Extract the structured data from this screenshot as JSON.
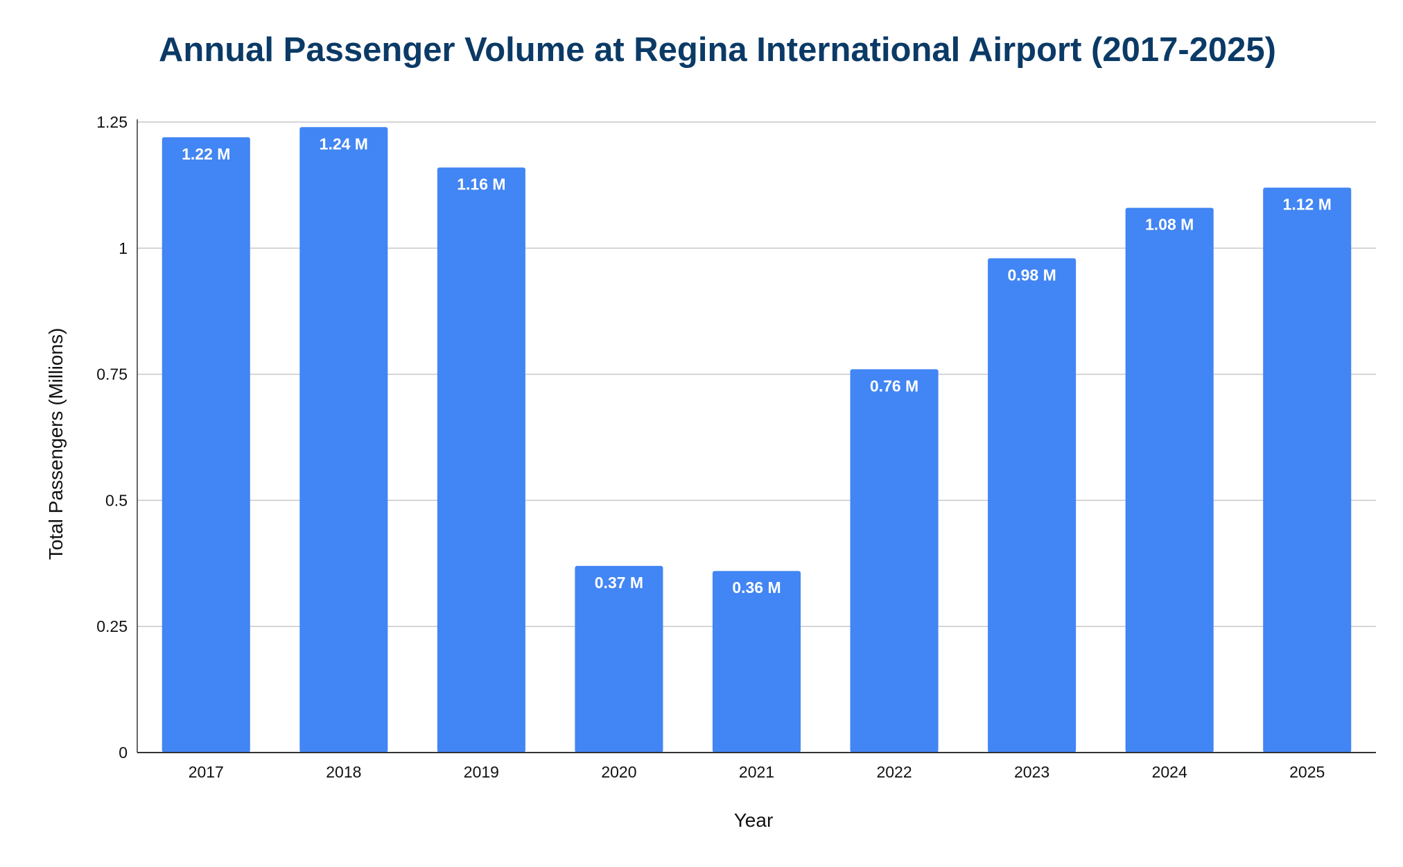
{
  "chart_data": {
    "type": "bar",
    "title": "Annual Passenger Volume at Regina International Airport (2017-2025)",
    "xlabel": "Year",
    "ylabel": "Total Passengers (Millions)",
    "categories": [
      "2017",
      "2018",
      "2019",
      "2020",
      "2021",
      "2022",
      "2023",
      "2024",
      "2025"
    ],
    "values": [
      1.22,
      1.24,
      1.16,
      0.37,
      0.36,
      0.76,
      0.98,
      1.08,
      1.12
    ],
    "data_labels": [
      "1.22 M",
      "1.24 M",
      "1.16 M",
      "0.37 M",
      "0.36 M",
      "0.76 M",
      "0.98 M",
      "1.08 M",
      "1.12 M"
    ],
    "ylim": [
      0,
      1.25
    ],
    "y_ticks": [
      0,
      0.25,
      0.5,
      0.75,
      1,
      1.25
    ],
    "y_tick_labels": [
      "0",
      "0.25",
      "0.5",
      "0.75",
      "1",
      "1.25"
    ],
    "grid": true,
    "legend": "none",
    "colors": {
      "bar": "#4285f4",
      "title": "#0b3a66",
      "grid": "#c8c8c8",
      "axis": "#333333"
    }
  }
}
